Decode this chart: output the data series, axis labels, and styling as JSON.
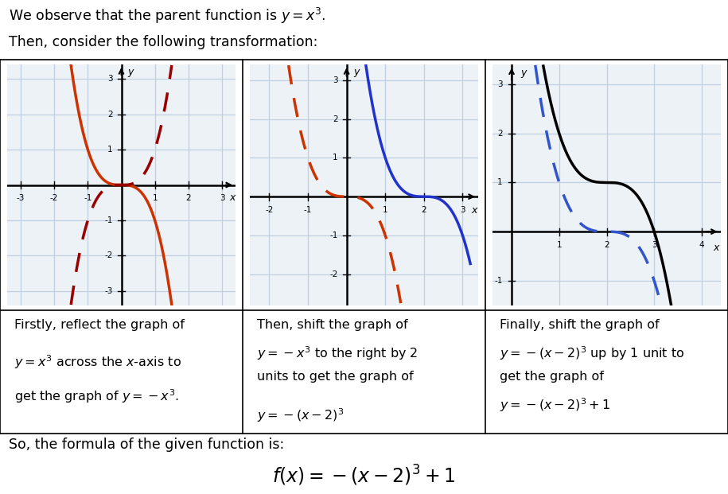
{
  "header_text1": "We observe that the parent function is $y = x^3$.",
  "header_text2": "Then, consider the following transformation:",
  "footer_text": "So, the formula of the given function is:",
  "formula": "$f(x) = -(x-2)^3+1$",
  "panel1": {
    "xlim": [
      -3.4,
      3.4
    ],
    "ylim": [
      -3.4,
      3.4
    ],
    "xticks": [
      -3,
      -2,
      -1,
      1,
      2,
      3
    ],
    "yticks": [
      -3,
      -2,
      -1,
      1,
      2,
      3
    ],
    "solid_color": "#cc3300",
    "dashed_color": "#990000",
    "desc_line1": "Firstly, reflect the graph of",
    "desc_line2": "$y = x^3$ across the $x$-axis to",
    "desc_line3": "get the graph of $y = -x^3$."
  },
  "panel2": {
    "xlim": [
      -2.5,
      3.4
    ],
    "ylim": [
      -2.8,
      3.4
    ],
    "xticks": [
      -2,
      -1,
      1,
      2,
      3
    ],
    "yticks": [
      -2,
      -1,
      1,
      2,
      3
    ],
    "solid_color": "#2233cc",
    "dashed_color": "#cc3300",
    "desc_line1": "Then, shift the graph of",
    "desc_line2": "$y = -x^3$ to the right by 2",
    "desc_line3": "units to get the graph of",
    "desc_line4": "$y = -(x-2)^3$"
  },
  "panel3": {
    "xlim": [
      -0.4,
      4.4
    ],
    "ylim": [
      -1.5,
      3.4
    ],
    "xticks": [
      1,
      2,
      3,
      4
    ],
    "yticks": [
      -1,
      1,
      2,
      3
    ],
    "solid_color": "#000000",
    "dashed_color": "#3355cc",
    "desc_line1": "Finally, shift the graph of",
    "desc_line2": "$y = -(x-2)^3$ up by 1 unit to",
    "desc_line3": "get the graph of",
    "desc_line4": "$y = -(x-2)^3+1$"
  },
  "bg_color": "#ffffff",
  "grid_color": "#c0cfe0",
  "axis_color": "#000000"
}
